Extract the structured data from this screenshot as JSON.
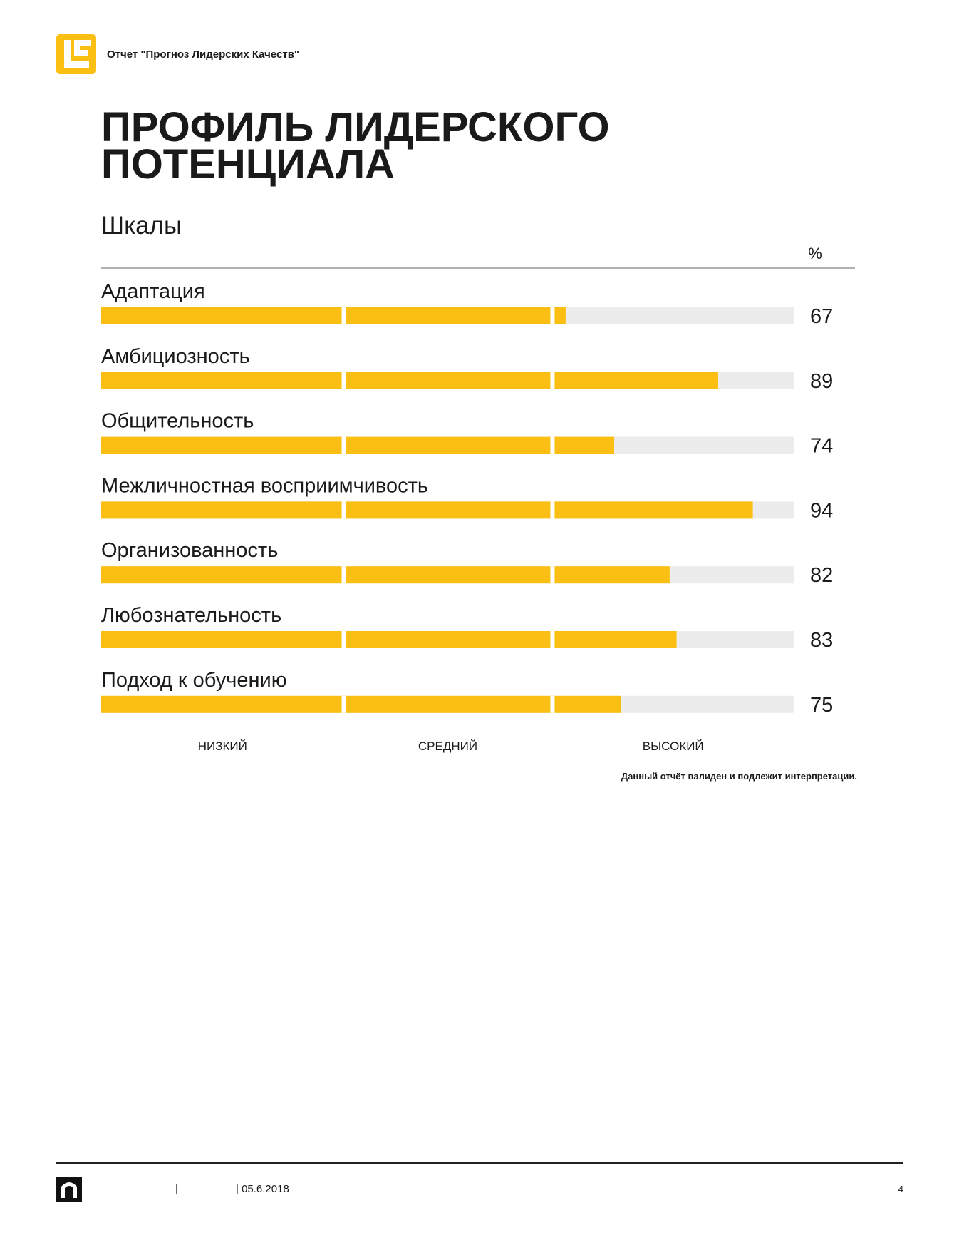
{
  "header": {
    "title": "Отчет \"Прогноз Лидерских Качеств\""
  },
  "page_title": [
    "ПРОФИЛЬ ЛИДЕРСКОГО",
    "ПОТЕНЦИАЛА"
  ],
  "section": "Шкалы",
  "chart_data": {
    "type": "bar",
    "orientation": "horizontal",
    "unit_label": "%",
    "categories": [
      "Адаптация",
      "Амбициозность",
      "Общительность",
      "Межличностная восприимчивость",
      "Организованность",
      "Любознательность",
      "Подход к обучению"
    ],
    "values": [
      67,
      89,
      74,
      94,
      82,
      83,
      75
    ],
    "xlim": [
      0,
      100
    ],
    "color": "#fbbf14",
    "track_color": "#ececec",
    "band_labels": [
      "НИЗКИЙ",
      "СРЕДНИЙ",
      "ВЫСОКИЙ"
    ]
  },
  "note": "Данный отчёт валиден и подлежит интерпретации.",
  "footer": {
    "separator": "|",
    "date": "| 05.6.2018",
    "page": "4"
  }
}
